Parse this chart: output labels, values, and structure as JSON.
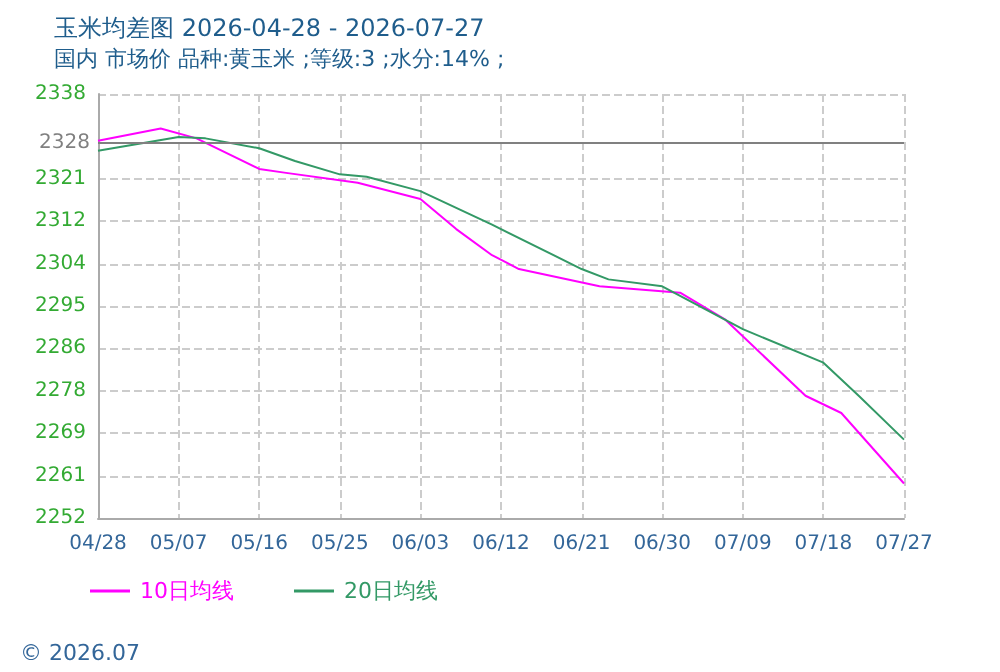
{
  "chart_data": {
    "type": "line",
    "title": "玉米均差图 2026-04-28 - 2026-07-27",
    "subtitle": "国内 市场价 品种:黄玉米 ;等级:3 ;水分:14% ;",
    "annotations": [
      "© 2026.07"
    ],
    "series": [
      {
        "name": "10日均线",
        "color": "#ff00ff",
        "x": [
          "--04-28",
          "--05-05",
          "--05-09",
          "--05-16",
          "--05-19",
          "--05-27",
          "--06-03",
          "--06-07",
          "--06-11",
          "--06-14",
          "--06-23",
          "--07-02",
          "--07-07",
          "--07-16",
          "--07-20",
          "--07-27"
        ],
        "values": [
          2328.5,
          2331,
          2329,
          2322.8,
          2322,
          2320,
          2316.7,
          2310.6,
          2305.3,
          2302.5,
          2299,
          2297.7,
          2292.3,
          2276.8,
          2273.3,
          2259
        ]
      },
      {
        "name": "20日均线",
        "color": "#339966",
        "x": [
          "--04-28",
          "--05-07",
          "--05-10",
          "--05-16",
          "--05-20",
          "--05-25",
          "--05-28",
          "--06-03",
          "--06-11",
          "--06-21",
          "--06-24",
          "--06-30",
          "--07-09",
          "--07-18",
          "--07-22",
          "--07-27"
        ],
        "values": [
          2326.5,
          2329.3,
          2329,
          2327,
          2324.4,
          2321.7,
          2321.2,
          2318.3,
          2311.5,
          2302.5,
          2300.4,
          2299,
          2290.3,
          2283.5,
          2276.7,
          2267.9
        ]
      }
    ],
    "xlim": [
      "--04-28",
      "--07-27"
    ],
    "xticks": [
      {
        "value": "--04-28",
        "label": "04/28"
      },
      {
        "value": "--05-07",
        "label": "05/07"
      },
      {
        "value": "--05-16",
        "label": "05/16"
      },
      {
        "value": "--05-25",
        "label": "05/25"
      },
      {
        "value": "--06-03",
        "label": "06/03"
      },
      {
        "value": "--06-12",
        "label": "06/12"
      },
      {
        "value": "--06-21",
        "label": "06/21"
      },
      {
        "value": "--06-30",
        "label": "06/30"
      },
      {
        "value": "--07-09",
        "label": "07/09"
      },
      {
        "value": "--07-18",
        "label": "07/18"
      },
      {
        "value": "--07-27",
        "label": "07/27"
      }
    ],
    "ylim": [
      2252,
      2338
    ],
    "yticks": [
      2252,
      {
        "value": 2260.6,
        "label": "2261"
      },
      {
        "value": 2269.2,
        "label": "2269"
      },
      {
        "value": 2277.8,
        "label": "2278"
      },
      {
        "value": 2286.4,
        "label": "2286"
      },
      2295,
      {
        "value": 2303.6,
        "label": "2304"
      },
      {
        "value": 2312.2,
        "label": "2312"
      },
      {
        "value": 2320.8,
        "label": "2321"
      },
      2338
    ],
    "ref_lines": [
      {
        "axis": "y",
        "value": 2328,
        "label": "2328",
        "color": "#808080"
      }
    ],
    "grid": true,
    "legend": "bottom",
    "marker": "none",
    "line_style": "solid"
  }
}
